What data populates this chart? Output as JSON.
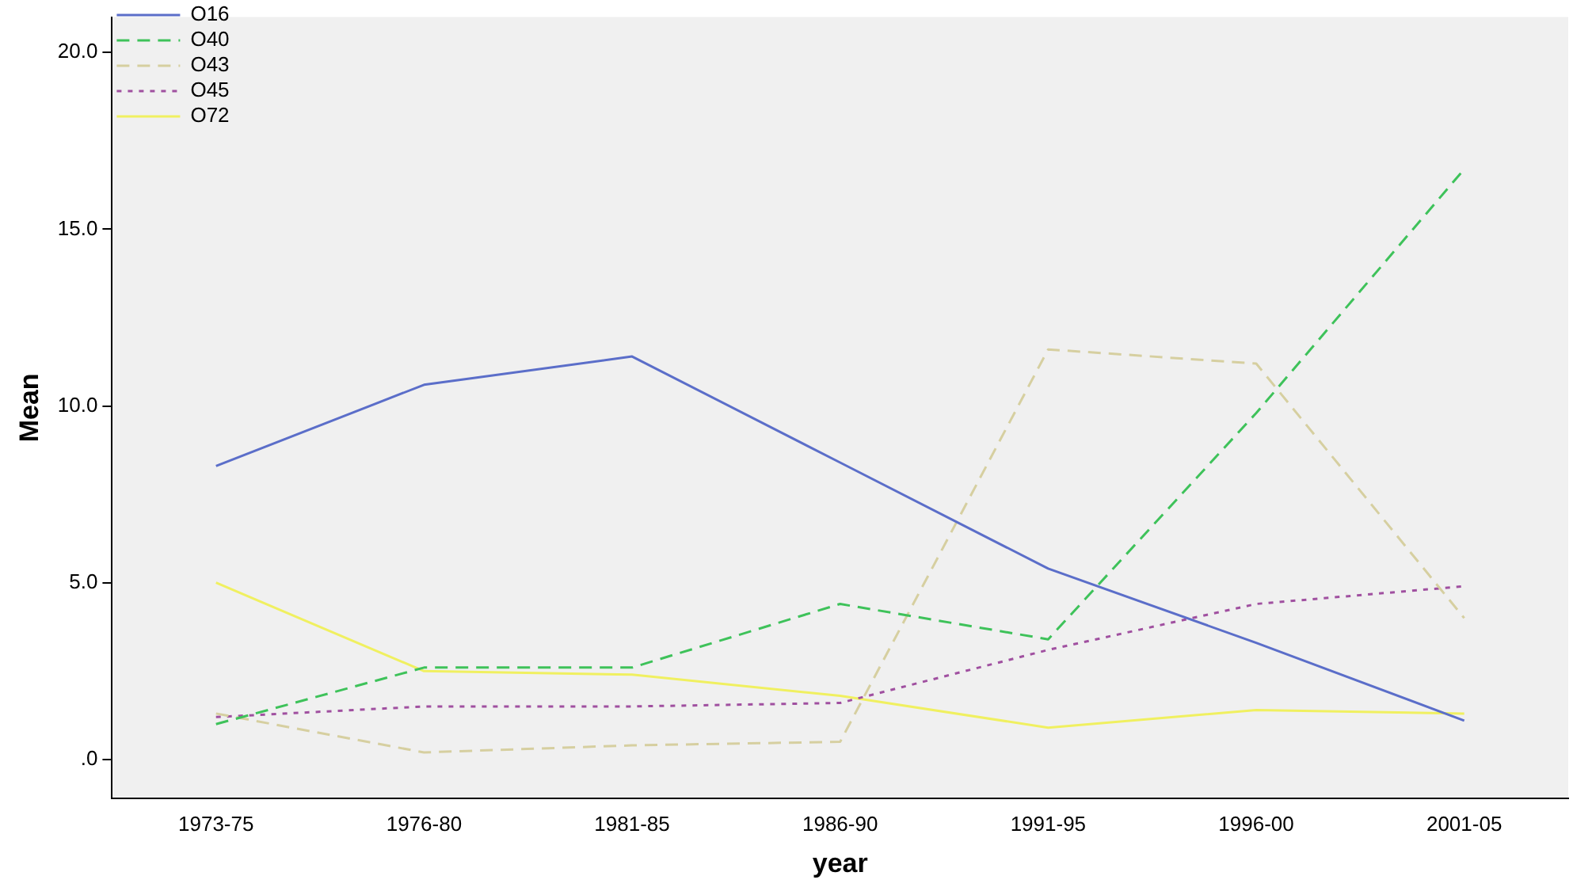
{
  "chart_data": {
    "type": "line",
    "xlabel": "year",
    "ylabel": "Mean",
    "categories": [
      "1973-75",
      "1976-80",
      "1981-85",
      "1986-90",
      "1991-95",
      "1996-00",
      "2001-05"
    ],
    "series": [
      {
        "name": "O16",
        "color": "#5b6ec9",
        "line_style": "solid",
        "values": [
          8.3,
          10.6,
          11.4,
          8.4,
          5.4,
          3.3,
          1.1
        ]
      },
      {
        "name": "O40",
        "color": "#3ec25a",
        "line_style": "dashed",
        "values": [
          1.0,
          2.6,
          2.6,
          4.4,
          3.4,
          9.8,
          16.7
        ]
      },
      {
        "name": "O43",
        "color": "#d6cfa0",
        "line_style": "dashed",
        "values": [
          1.3,
          0.2,
          0.4,
          0.5,
          11.6,
          11.2,
          4.0
        ]
      },
      {
        "name": "O45",
        "color": "#a050a0",
        "line_style": "dotted",
        "values": [
          1.2,
          1.5,
          1.5,
          1.6,
          3.1,
          4.4,
          4.9
        ]
      },
      {
        "name": "O72",
        "color": "#f0f060",
        "line_style": "solid",
        "values": [
          5.0,
          2.5,
          2.4,
          1.8,
          0.9,
          1.4,
          1.3
        ]
      }
    ],
    "ylim": [
      -1.1,
      21
    ],
    "yticks": [
      {
        "value": 0,
        "label": ".0"
      },
      {
        "value": 5,
        "label": "5.0"
      },
      {
        "value": 10,
        "label": "10.0"
      },
      {
        "value": 15,
        "label": "15.0"
      },
      {
        "value": 20,
        "label": "20.0"
      }
    ],
    "grid": false,
    "legend": "top left",
    "marker": "none"
  }
}
